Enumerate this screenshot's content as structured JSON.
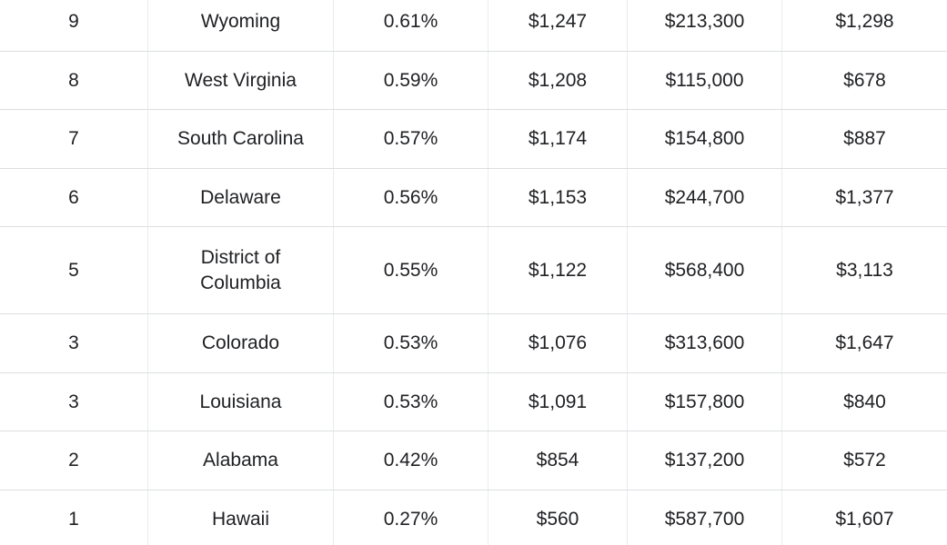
{
  "colors": {
    "text": "#202124",
    "row_bg": "#ffffff",
    "horizontal_border": "#dcdee0",
    "vertical_border": "#e9ebec"
  },
  "chart_data": {
    "type": "table",
    "headers_visible": false,
    "rows": [
      [
        "9",
        "Wyoming",
        "0.61%",
        "$1,247",
        "$213,300",
        "$1,298"
      ],
      [
        "8",
        "West Virginia",
        "0.59%",
        "$1,208",
        "$115,000",
        "$678"
      ],
      [
        "7",
        "South Carolina",
        "0.57%",
        "$1,174",
        "$154,800",
        "$887"
      ],
      [
        "6",
        "Delaware",
        "0.56%",
        "$1,153",
        "$244,700",
        "$1,377"
      ],
      [
        "5",
        "District of Columbia",
        "0.55%",
        "$1,122",
        "$568,400",
        "$3,113"
      ],
      [
        "3",
        "Colorado",
        "0.53%",
        "$1,076",
        "$313,600",
        "$1,647"
      ],
      [
        "3",
        "Louisiana",
        "0.53%",
        "$1,091",
        "$157,800",
        "$840"
      ],
      [
        "2",
        "Alabama",
        "0.42%",
        "$854",
        "$137,200",
        "$572"
      ],
      [
        "1",
        "Hawaii",
        "0.27%",
        "$560",
        "$587,700",
        "$1,607"
      ]
    ]
  }
}
